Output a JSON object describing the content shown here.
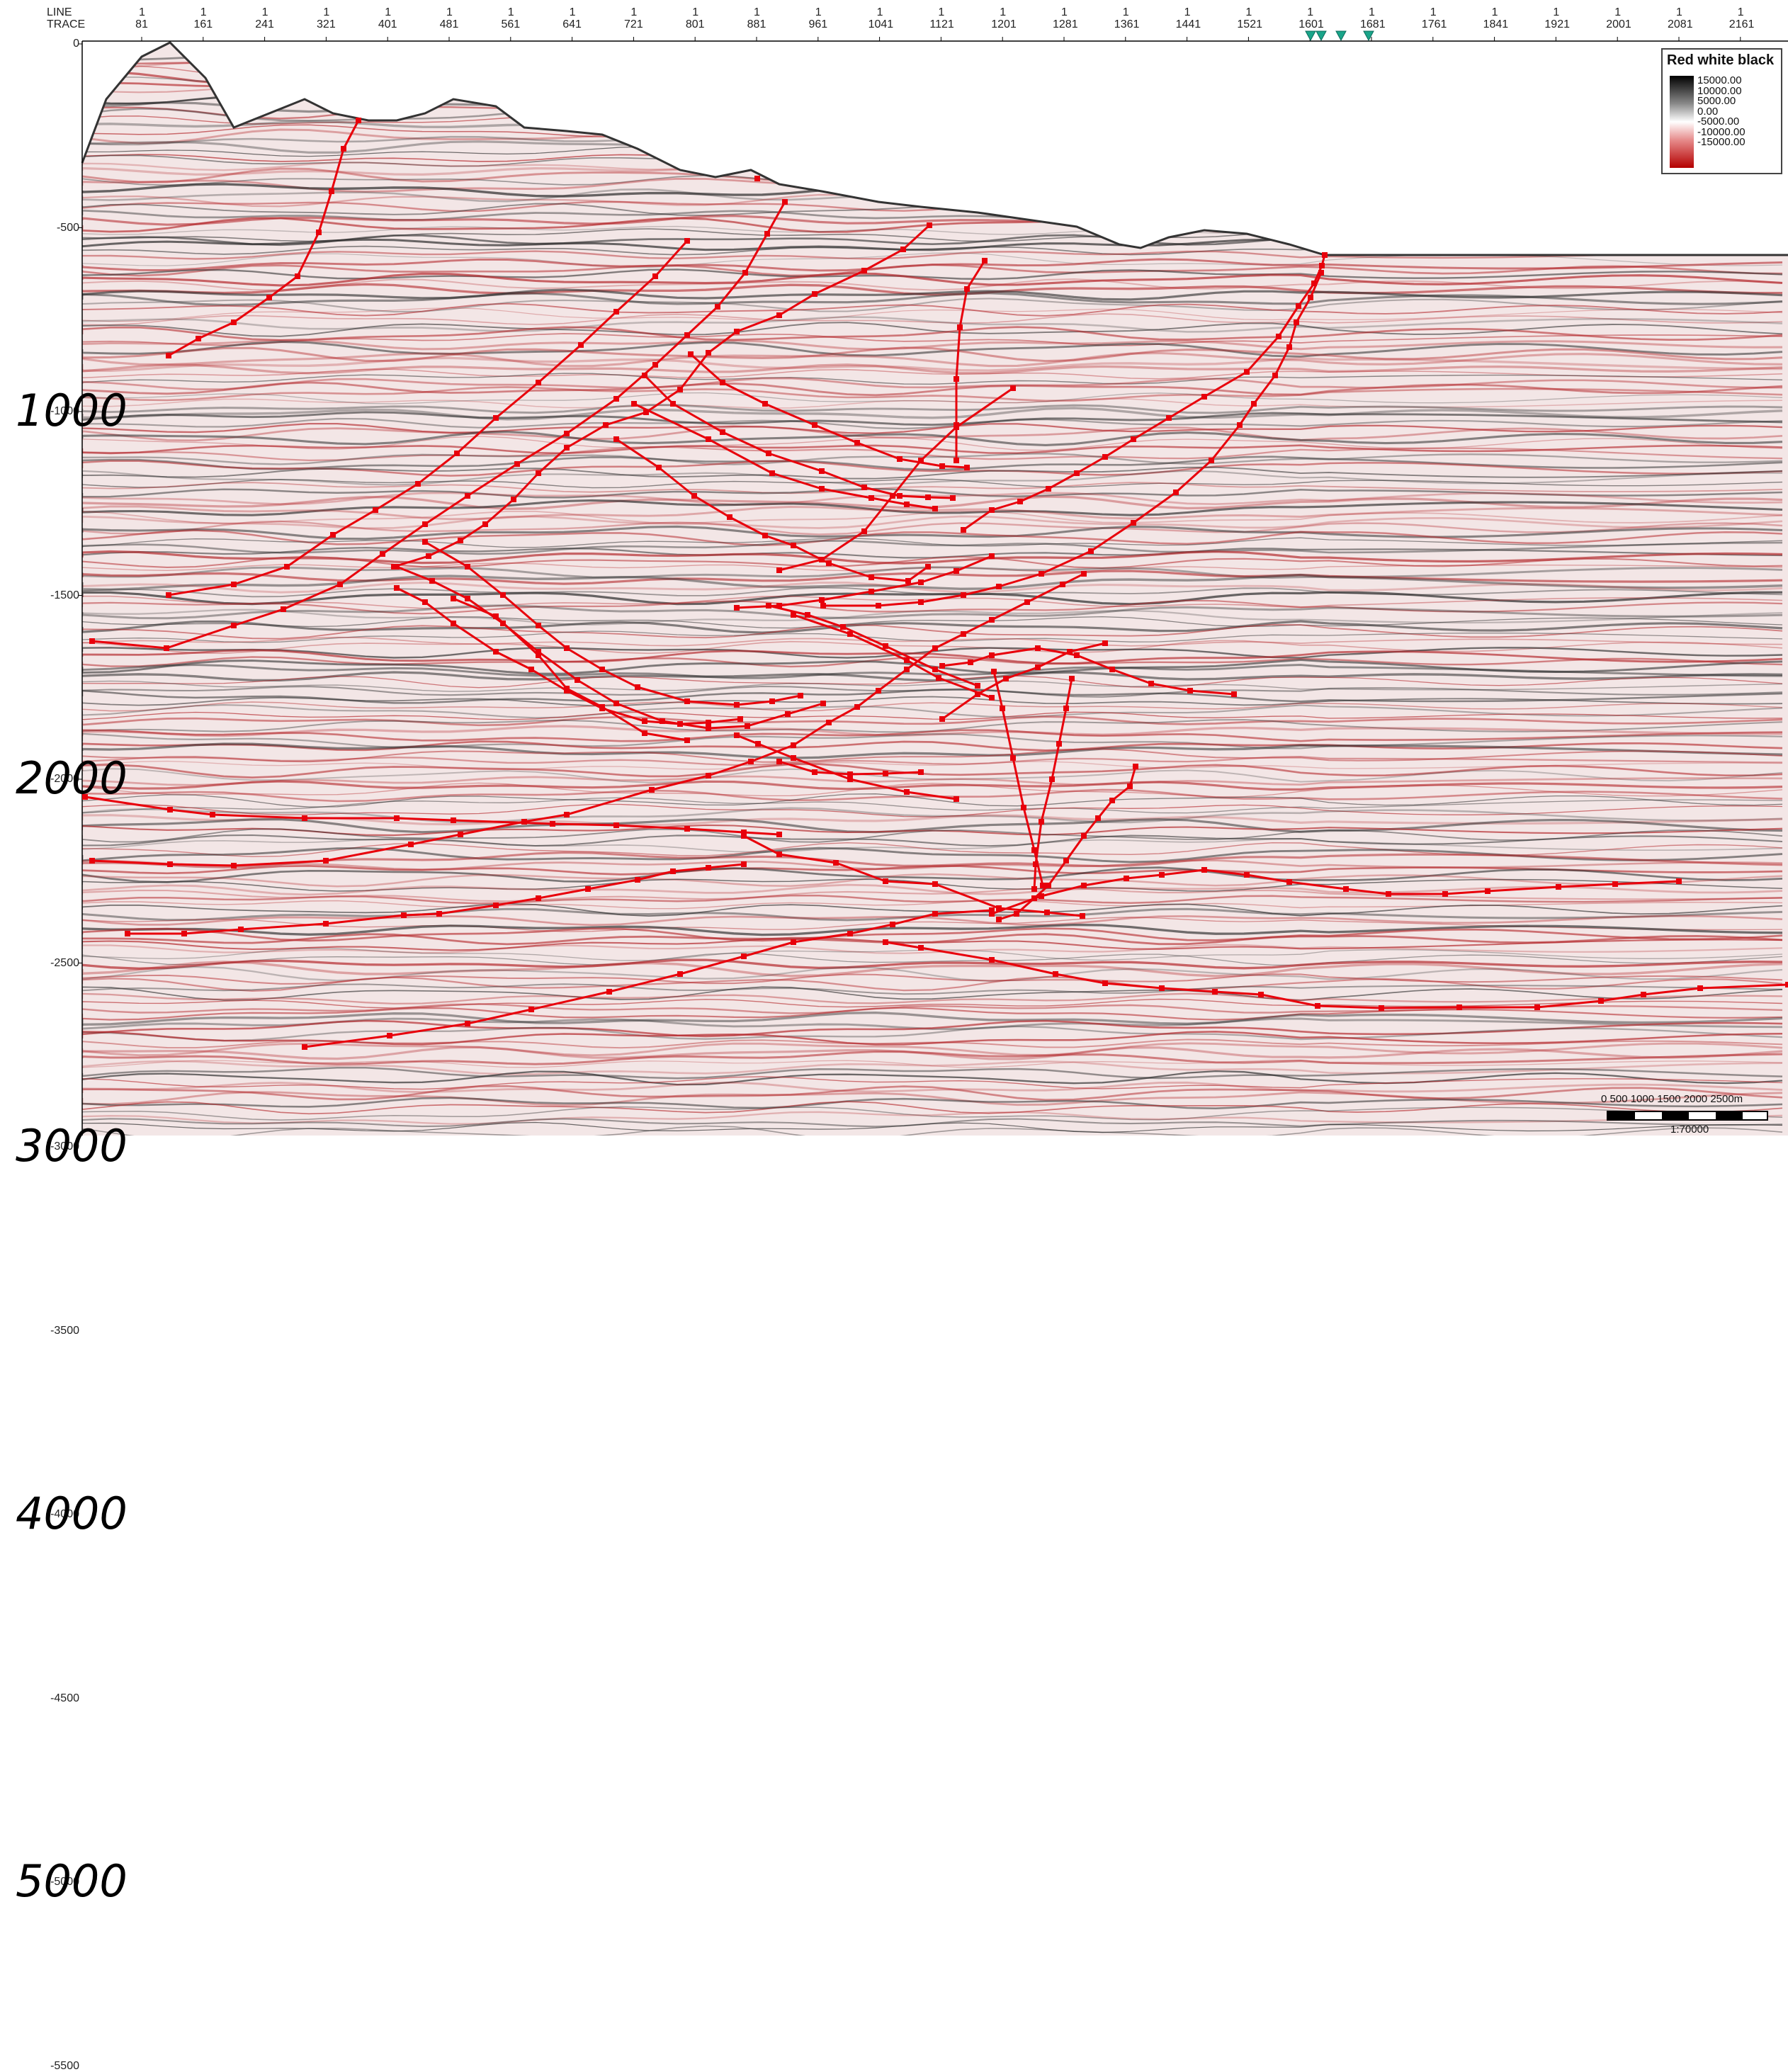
{
  "header": {
    "line_label": "LINE",
    "trace_label": "TRACE",
    "line_value": "1"
  },
  "traces": [
    "81",
    "161",
    "241",
    "321",
    "401",
    "481",
    "561",
    "641",
    "721",
    "801",
    "881",
    "961",
    "1041",
    "1121",
    "1201",
    "1281",
    "1361",
    "1441",
    "1521",
    "1601",
    "1681",
    "1761",
    "1841",
    "1921",
    "2001",
    "2081",
    "2161"
  ],
  "depth_ticks": [
    "0",
    "-500",
    "-1000",
    "-1500",
    "-2000",
    "-2500",
    "-3000",
    "-3500",
    "-4000",
    "-4500",
    "-5000",
    "-5500"
  ],
  "depth_annotations": [
    "1000",
    "2000",
    "3000",
    "4000",
    "5000"
  ],
  "legend": {
    "title": "Red white black",
    "values": [
      "15000.00",
      "10000.00",
      "5000.00",
      "0.00",
      "-5000.00",
      "-10000.00",
      "-15000.00"
    ]
  },
  "scale_bar": {
    "labels": "0   500  1000 1500 2000 2500m",
    "ratio": "1:70000"
  },
  "colors": {
    "interpretation": "#e8000b",
    "well_marker": "#1aa58a",
    "positive": "#000000",
    "negative": "#b40000"
  }
}
